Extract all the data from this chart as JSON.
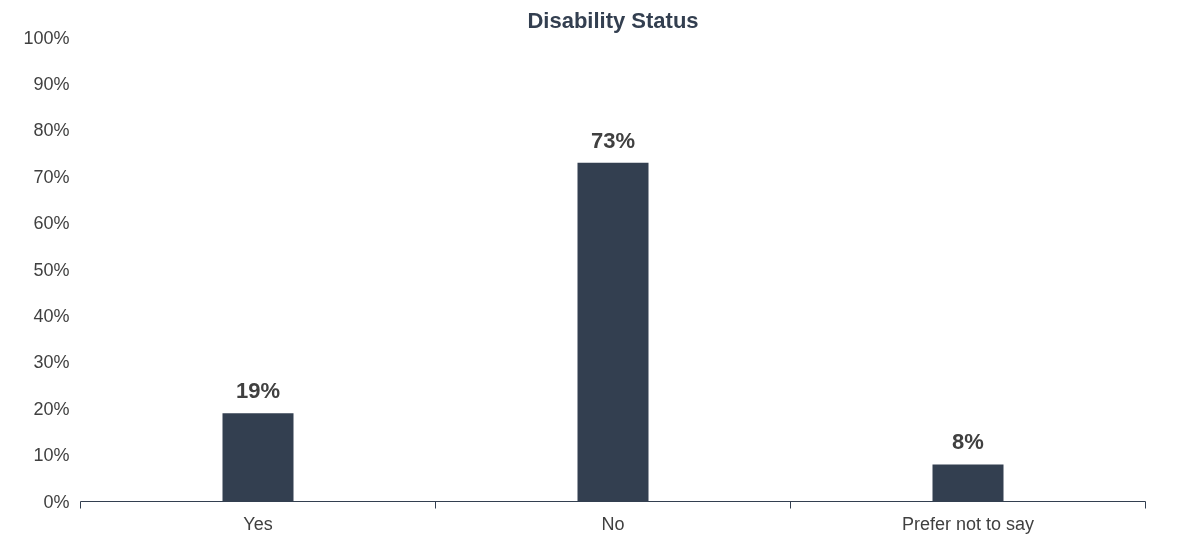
{
  "chart_data": {
    "type": "bar",
    "title": "Disability Status",
    "categories": [
      "Yes",
      "No",
      "Prefer not to say"
    ],
    "values": [
      19,
      73,
      8
    ],
    "color": "#333f50",
    "ylim": [
      0,
      100
    ],
    "yticks": [
      {
        "value": 0,
        "label": "0%"
      },
      {
        "value": 10,
        "label": "10%"
      },
      {
        "value": 20,
        "label": "20%"
      },
      {
        "value": 30,
        "label": "30%"
      },
      {
        "value": 40,
        "label": "40%"
      },
      {
        "value": 50,
        "label": "50%"
      },
      {
        "value": 60,
        "label": "60%"
      },
      {
        "value": 70,
        "label": "70%"
      },
      {
        "value": 80,
        "label": "80%"
      },
      {
        "value": 90,
        "label": "90%"
      },
      {
        "value": 100,
        "label": "100%"
      }
    ],
    "value_labels": [
      "19%",
      "73%",
      "8%"
    ]
  }
}
